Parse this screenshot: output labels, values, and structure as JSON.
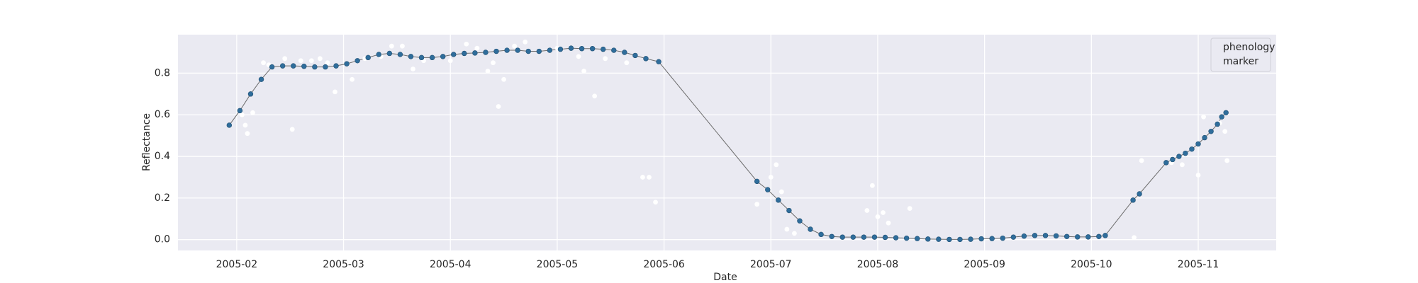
{
  "chart_data": {
    "type": "scatter",
    "x_label": "Date",
    "y_label": "Reflectance",
    "xlim": [
      1.45,
      11.73
    ],
    "ylim": [
      -0.052,
      0.985
    ],
    "xticks": [
      {
        "value": 2,
        "label": "2005-02"
      },
      {
        "value": 3,
        "label": "2005-03"
      },
      {
        "value": 4,
        "label": "2005-04"
      },
      {
        "value": 5,
        "label": "2005-05"
      },
      {
        "value": 6,
        "label": "2005-06"
      },
      {
        "value": 7,
        "label": "2005-07"
      },
      {
        "value": 8,
        "label": "2005-08"
      },
      {
        "value": 9,
        "label": "2005-09"
      },
      {
        "value": 10,
        "label": "2005-10"
      },
      {
        "value": 11,
        "label": "2005-11"
      }
    ],
    "yticks": [
      {
        "value": 0,
        "label": "0.0"
      },
      {
        "value": 0.2,
        "label": "0.2"
      },
      {
        "value": 0.4,
        "label": "0.4"
      },
      {
        "value": 0.6,
        "label": "0.6"
      },
      {
        "value": 0.8,
        "label": "0.8"
      }
    ],
    "grid": true,
    "background": "#eaeaf2",
    "legend_position": "upper right",
    "series": [
      {
        "name": "phenology",
        "color": "#2f6d9b",
        "line_color": "#6b6b6b",
        "x": [
          1.93,
          2.03,
          2.13,
          2.23,
          2.33,
          2.43,
          2.53,
          2.63,
          2.73,
          2.83,
          2.93,
          3.03,
          3.13,
          3.23,
          3.33,
          3.43,
          3.53,
          3.63,
          3.73,
          3.83,
          3.93,
          4.03,
          4.13,
          4.23,
          4.33,
          4.43,
          4.53,
          4.63,
          4.73,
          4.83,
          4.93,
          5.03,
          5.13,
          5.23,
          5.33,
          5.43,
          5.53,
          5.63,
          5.73,
          5.83,
          5.95,
          6.87,
          6.97,
          7.07,
          7.17,
          7.27,
          7.37,
          7.47,
          7.57,
          7.67,
          7.77,
          7.87,
          7.97,
          8.07,
          8.17,
          8.27,
          8.37,
          8.47,
          8.57,
          8.67,
          8.77,
          8.87,
          8.97,
          9.07,
          9.17,
          9.27,
          9.37,
          9.47,
          9.57,
          9.67,
          9.77,
          9.87,
          9.97,
          10.07,
          10.13,
          10.39,
          10.45,
          10.7,
          10.76,
          10.82,
          10.88,
          10.94,
          11.0,
          11.06,
          11.12,
          11.18,
          11.22,
          11.26
        ],
        "values": [
          0.55,
          0.62,
          0.7,
          0.77,
          0.83,
          0.835,
          0.835,
          0.833,
          0.83,
          0.83,
          0.835,
          0.845,
          0.86,
          0.875,
          0.89,
          0.895,
          0.89,
          0.88,
          0.875,
          0.875,
          0.88,
          0.89,
          0.895,
          0.897,
          0.9,
          0.905,
          0.91,
          0.91,
          0.905,
          0.905,
          0.91,
          0.915,
          0.92,
          0.918,
          0.918,
          0.915,
          0.91,
          0.9,
          0.885,
          0.87,
          0.855,
          0.28,
          0.24,
          0.19,
          0.14,
          0.09,
          0.05,
          0.025,
          0.015,
          0.012,
          0.012,
          0.012,
          0.012,
          0.011,
          0.009,
          0.007,
          0.005,
          0.003,
          0.002,
          0.001,
          0.001,
          0.002,
          0.004,
          0.005,
          0.007,
          0.012,
          0.017,
          0.02,
          0.02,
          0.018,
          0.015,
          0.013,
          0.013,
          0.015,
          0.02,
          0.19,
          0.22,
          0.37,
          0.385,
          0.4,
          0.415,
          0.435,
          0.46,
          0.49,
          0.52,
          0.555,
          0.59,
          0.61
        ]
      },
      {
        "name": "marker",
        "color": "#ffffff",
        "x": [
          2.05,
          2.08,
          2.1,
          2.15,
          2.25,
          2.3,
          2.45,
          2.52,
          2.6,
          2.7,
          2.78,
          2.85,
          2.92,
          3.08,
          3.2,
          3.35,
          3.45,
          3.55,
          3.65,
          3.75,
          4.0,
          4.15,
          4.25,
          4.35,
          4.4,
          4.45,
          4.5,
          4.6,
          4.7,
          5.0,
          5.2,
          5.25,
          5.35,
          5.45,
          5.65,
          5.8,
          5.86,
          5.92,
          6.87,
          7.0,
          7.05,
          7.1,
          7.15,
          7.22,
          7.9,
          7.95,
          8.0,
          8.05,
          8.1,
          8.3,
          10.4,
          10.47,
          10.75,
          10.85,
          11.0,
          11.05,
          11.2,
          11.25,
          11.27
        ],
        "values": [
          0.6,
          0.55,
          0.51,
          0.61,
          0.85,
          0.84,
          0.87,
          0.53,
          0.86,
          0.86,
          0.87,
          0.85,
          0.71,
          0.77,
          0.87,
          0.88,
          0.93,
          0.93,
          0.82,
          0.86,
          0.86,
          0.94,
          0.92,
          0.81,
          0.85,
          0.64,
          0.77,
          0.93,
          0.95,
          0.92,
          0.88,
          0.81,
          0.69,
          0.87,
          0.85,
          0.3,
          0.3,
          0.18,
          0.17,
          0.3,
          0.36,
          0.23,
          0.05,
          0.03,
          0.14,
          0.26,
          0.11,
          0.13,
          0.08,
          0.15,
          0.01,
          0.38,
          0.37,
          0.36,
          0.31,
          0.59,
          0.56,
          0.52,
          0.38
        ]
      }
    ]
  }
}
